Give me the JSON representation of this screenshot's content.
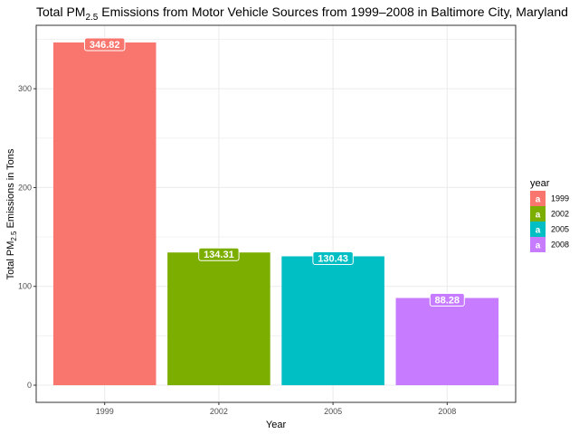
{
  "chart_data": {
    "type": "bar",
    "title": {
      "prefix": "Total PM",
      "subscript": "2.5",
      "suffix": " Emissions from Motor Vehicle Sources from 1999–2008 in Baltimore City, Maryland"
    },
    "xlabel": "Year",
    "ylabel": {
      "prefix": "Total PM",
      "subscript": "2.5",
      "suffix": " Emissions in Tons"
    },
    "categories": [
      "1999",
      "2002",
      "2005",
      "2008"
    ],
    "values": [
      346.82,
      134.31,
      130.43,
      88.28
    ],
    "data_labels": [
      "346.82",
      "134.31",
      "130.43",
      "88.28"
    ],
    "ylim": [
      -17.341,
      364.161
    ],
    "yticks": [
      0,
      100,
      200,
      300
    ],
    "ytick_labels": [
      "0",
      "100",
      "200",
      "300"
    ],
    "grid": true,
    "colors": [
      "#F8766D",
      "#7CAE00",
      "#00BFC4",
      "#C77CFF"
    ],
    "legend": {
      "title": "year",
      "placement": "right",
      "glyph": "a",
      "entries": [
        "1999",
        "2002",
        "2005",
        "2008"
      ]
    }
  }
}
